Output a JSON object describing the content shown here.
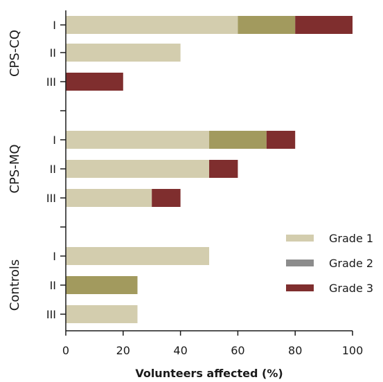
{
  "chart_data": {
    "type": "bar",
    "orientation": "horizontal",
    "stacked": true,
    "xlabel": "Volunteers affected (%)",
    "xlim": [
      0,
      100
    ],
    "xticks": [
      0,
      20,
      40,
      60,
      80,
      100
    ],
    "grid": false,
    "legend_position": "right",
    "groups": [
      {
        "name": "CPS-CQ",
        "rows": [
          {
            "label": "I",
            "values": [
              60,
              20,
              20
            ]
          },
          {
            "label": "II",
            "values": [
              40,
              0,
              0
            ]
          },
          {
            "label": "III",
            "values": [
              0,
              0,
              20
            ]
          }
        ]
      },
      {
        "name": "CPS-MQ",
        "rows": [
          {
            "label": "I",
            "values": [
              50,
              20,
              10
            ]
          },
          {
            "label": "II",
            "values": [
              50,
              0,
              10
            ]
          },
          {
            "label": "III",
            "values": [
              30,
              0,
              10
            ]
          }
        ]
      },
      {
        "name": "Controls",
        "rows": [
          {
            "label": "I",
            "values": [
              50,
              0,
              0
            ]
          },
          {
            "label": "II",
            "values": [
              0,
              25,
              0
            ]
          },
          {
            "label": "III",
            "values": [
              25,
              0,
              0
            ]
          }
        ]
      }
    ],
    "series": [
      {
        "name": "Grade 1",
        "color": "#d3cdae",
        "legend_color": "#d3cdae"
      },
      {
        "name": "Grade 2",
        "color": "#a29a5e",
        "legend_color": "#8c8c8c"
      },
      {
        "name": "Grade 3",
        "color": "#7f2e2e",
        "legend_color": "#7f2e2e"
      }
    ]
  }
}
